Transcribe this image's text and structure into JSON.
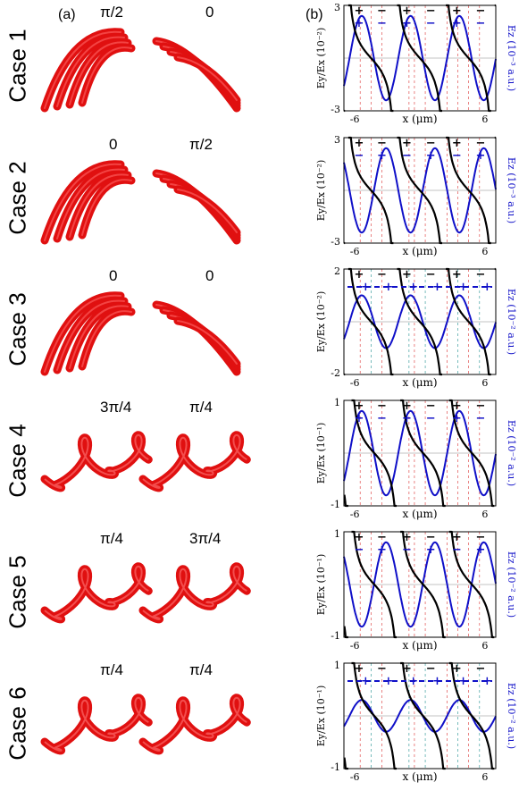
{
  "panel_a": "(a)",
  "panel_b": "(b)",
  "cases": [
    {
      "label": "Case 1",
      "phase_left": "π/2",
      "phase_right": "0",
      "kind": "arc",
      "ylim": [
        -3,
        3
      ],
      "yexp": "(10⁻²)",
      "rexp": "(10⁻³ a.u.)",
      "top_signs": [
        "+",
        "−",
        "+",
        "−",
        "+",
        "−"
      ],
      "sub_signs": [
        "+",
        "−",
        "+",
        "−",
        "+",
        "−"
      ],
      "ez_amp": 0.8,
      "ez_shift": 0,
      "dashed": false
    },
    {
      "label": "Case 2",
      "phase_left": "0",
      "phase_right": "π/2",
      "kind": "arc",
      "ylim": [
        -3,
        3
      ],
      "yexp": "(10⁻²)",
      "rexp": "(10⁻³ a.u.)",
      "top_signs": [
        "+",
        "−",
        "+",
        "−",
        "+",
        "−"
      ],
      "sub_signs": [
        "−",
        "+",
        "−",
        "+",
        "−",
        "+"
      ],
      "ez_amp": 0.8,
      "ez_shift": 3.14,
      "dashed": false
    },
    {
      "label": "Case 3",
      "phase_left": "0",
      "phase_right": "0",
      "kind": "arc",
      "ylim": [
        -2,
        2
      ],
      "yexp": "(10⁻²)",
      "rexp": "(10⁻² a.u.)",
      "top_signs": [
        "+",
        "−",
        "+",
        "−",
        "+",
        "−"
      ],
      "sub_signs": [
        "+",
        "+",
        "+",
        "+",
        "+",
        "+"
      ],
      "ez_amp": 0.5,
      "ez_shift": 0,
      "dashed": true
    },
    {
      "label": "Case 4",
      "phase_left": "3π/4",
      "phase_right": "π/4",
      "kind": "loop",
      "ylim": [
        -1,
        1
      ],
      "yexp": "(10⁻¹)",
      "rexp": "(10⁻² a.u.)",
      "top_signs": [
        "+",
        "−",
        "+",
        "−",
        "+",
        "−"
      ],
      "sub_signs": [
        "+",
        "−",
        "+",
        "−",
        "+",
        "−"
      ],
      "ez_amp": 0.8,
      "ez_shift": 0,
      "dashed": false
    },
    {
      "label": "Case 5",
      "phase_left": "π/4",
      "phase_right": "3π/4",
      "kind": "loop",
      "ylim": [
        -1,
        1
      ],
      "yexp": "(10⁻¹)",
      "rexp": "(10⁻² a.u.)",
      "top_signs": [
        "+",
        "−",
        "+",
        "−",
        "+",
        "−"
      ],
      "sub_signs": [
        "−",
        "+",
        "−",
        "+",
        "−",
        "+"
      ],
      "ez_amp": 0.8,
      "ez_shift": 3.14,
      "dashed": false
    },
    {
      "label": "Case 6",
      "phase_left": "π/4",
      "phase_right": "π/4",
      "kind": "loop",
      "ylim": [
        -1,
        1
      ],
      "yexp": "(10⁻¹)",
      "rexp": "(10⁻² a.u.)",
      "top_signs": [
        "+",
        "−",
        "+",
        "−",
        "+",
        "−"
      ],
      "sub_signs": [
        "+",
        "+",
        "+",
        "+",
        "+",
        "+"
      ],
      "ez_amp": 0.3,
      "ez_shift": 0,
      "dashed": true
    }
  ],
  "xlabel": "x (μm)",
  "ylabel": "Ey/Ex",
  "rlabel": "Ez",
  "xticks": [
    "-6",
    "0",
    "6"
  ],
  "colors": {
    "helix": "#e01010",
    "ey": "#000000",
    "ez": "#1010c8",
    "vline_red": "#e05050",
    "vline_teal": "#40a0a0"
  }
}
